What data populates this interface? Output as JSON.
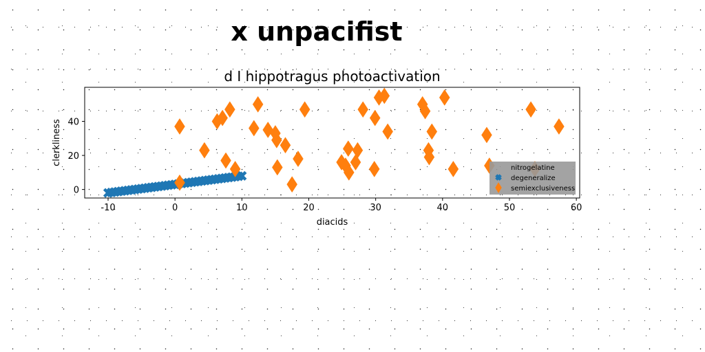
{
  "figure": {
    "suptitle": "x unpacifist"
  },
  "chart_data": {
    "type": "scatter",
    "title": "d I hippotragus photoactivation",
    "xlabel": "diacids",
    "ylabel": "clerkliness",
    "xlim": [
      -13.5,
      60.5
    ],
    "ylim": [
      -5,
      60
    ],
    "xticks": [
      -10,
      0,
      10,
      20,
      30,
      40,
      50,
      60
    ],
    "yticks": [
      0,
      20,
      40
    ],
    "legend": {
      "position": "lower-right",
      "background": "#999999",
      "entries": [
        "nitrogelatine",
        "degeneralize",
        "semiexclusiveness"
      ]
    },
    "series": [
      {
        "name": "nitrogelatine",
        "marker": "none",
        "color": "#888888",
        "x": [],
        "y": []
      },
      {
        "name": "degeneralize",
        "marker": "x",
        "color": "#1f77b4",
        "x": [
          -10,
          -9.5,
          -9,
          -8.5,
          -8,
          -7.5,
          -7,
          -6.5,
          -6,
          -5.5,
          -5,
          -4.5,
          -4,
          -3.5,
          -3,
          -2.5,
          -2,
          -1.5,
          -1,
          -0.5,
          0,
          0.5,
          1,
          1.5,
          2,
          2.5,
          3,
          3.5,
          4,
          4.5,
          5,
          5.5,
          6,
          6.5,
          7,
          7.5,
          8,
          8.5,
          9,
          9.5,
          10
        ],
        "y": [
          -2,
          -1.75,
          -1.5,
          -1.25,
          -1,
          -0.75,
          -0.5,
          -0.25,
          0,
          0.25,
          0.5,
          0.75,
          1,
          1.25,
          1.5,
          1.75,
          2,
          2.25,
          2.5,
          2.75,
          3,
          3.25,
          3.5,
          3.75,
          4,
          4.25,
          4.5,
          4.75,
          5,
          5.25,
          5.5,
          5.75,
          6,
          6.25,
          6.5,
          6.75,
          7,
          7.25,
          7.5,
          7.75,
          8
        ]
      },
      {
        "name": "semiexclusiveness",
        "marker": "thin-diamond",
        "color": "#ff7f0e",
        "x": [
          0.7,
          0.7,
          4.4,
          6.3,
          7.1,
          7.6,
          8.2,
          9.0,
          11.8,
          12.4,
          13.9,
          15.0,
          15.2,
          15.3,
          16.5,
          17.5,
          18.4,
          19.4,
          24.9,
          25.5,
          25.9,
          26.0,
          27.0,
          27.3,
          28.1,
          29.8,
          29.9,
          30.5,
          31.3,
          31.8,
          37.0,
          37.4,
          37.9,
          38.0,
          38.4,
          40.3,
          41.6,
          46.6,
          47.0,
          53.2,
          53.8,
          57.4
        ],
        "y": [
          37,
          4,
          23,
          40,
          42,
          17,
          47,
          12,
          36,
          50,
          35,
          33,
          29,
          13,
          26,
          3,
          18,
          47,
          16,
          14,
          24,
          10,
          16,
          23,
          47,
          12,
          42,
          54,
          55,
          34,
          50,
          46,
          23,
          19,
          34,
          54,
          12,
          32,
          14,
          47,
          12,
          37
        ]
      }
    ]
  }
}
